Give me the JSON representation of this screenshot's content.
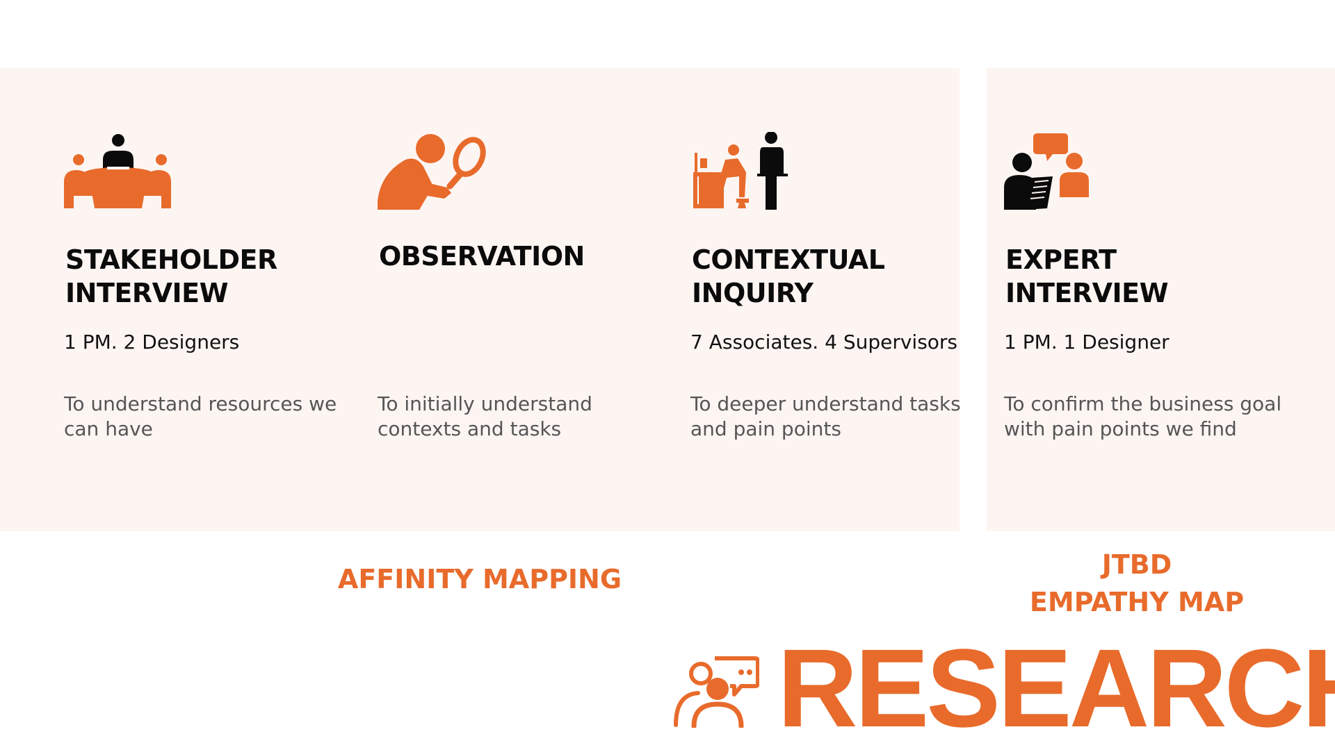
{
  "colors": {
    "accent": "#e86b2c",
    "panel_bg": "#fdf5f2",
    "title": "#0b0b0b",
    "description": "#555555"
  },
  "cards": [
    {
      "icon": "meeting-table-icon",
      "title": "STAKEHOLDER\nINTERVIEW",
      "team": "1 PM. 2 Designers",
      "description": "To understand resources we can have"
    },
    {
      "icon": "magnifier-person-icon",
      "title": "OBSERVATION",
      "team": "",
      "description": "To initially understand contexts and tasks"
    },
    {
      "icon": "desk-worker-supervisor-icon",
      "title": "CONTEXTUAL\nINQUIRY",
      "team": "7 Associates. 4 Supervisors",
      "description": "To deeper understand tasks and pain points"
    },
    {
      "icon": "interview-chat-icon",
      "title": "EXPERT\nINTERVIEW",
      "team": "1 PM. 1 Designer",
      "description": "To confirm the business goal with pain points we find"
    }
  ],
  "methods": {
    "affinity": "AFFINITY MAPPING",
    "jtbd_line1": "JTBD",
    "jtbd_line2": "EMPATHY MAP"
  },
  "footer": {
    "icon": "research-users-chat-icon",
    "title": "RESEARCH"
  }
}
